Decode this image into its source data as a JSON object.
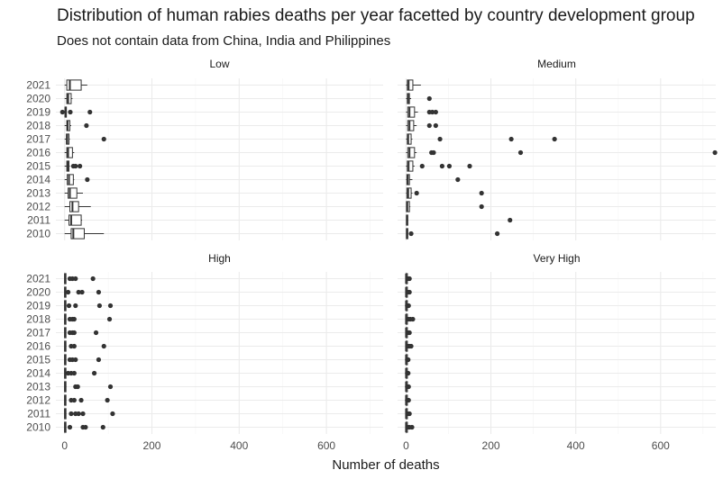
{
  "chart_data": {
    "type": "boxplot",
    "title": "Distribution of human rabies deaths per year facetted by country development group",
    "subtitle": "Does not contain data from China, India and Philippines",
    "xlabel": "Number of deaths",
    "ylabel": "",
    "xlim": [
      -20,
      730
    ],
    "x_ticks": [
      0,
      200,
      400,
      600
    ],
    "categories": [
      "2010",
      "2011",
      "2012",
      "2013",
      "2014",
      "2015",
      "2016",
      "2017",
      "2018",
      "2019",
      "2020",
      "2021"
    ],
    "grid": true,
    "facets": [
      {
        "name": "Low",
        "boxes": [
          {
            "year": "2010",
            "min": 0,
            "q1": 15,
            "median": 20,
            "q3": 45,
            "max": 90,
            "outliers": []
          },
          {
            "year": "2011",
            "min": 0,
            "q1": 10,
            "median": 15,
            "q3": 38,
            "max": 40,
            "outliers": []
          },
          {
            "year": "2012",
            "min": 0,
            "q1": 12,
            "median": 18,
            "q3": 32,
            "max": 60,
            "outliers": []
          },
          {
            "year": "2013",
            "min": 0,
            "q1": 8,
            "median": 12,
            "q3": 28,
            "max": 42,
            "outliers": []
          },
          {
            "year": "2014",
            "min": 0,
            "q1": 6,
            "median": 10,
            "q3": 20,
            "max": 22,
            "outliers": [
              52
            ]
          },
          {
            "year": "2015",
            "min": 0,
            "q1": 5,
            "median": 7,
            "q3": 10,
            "max": 12,
            "outliers": [
              20,
              25,
              35
            ]
          },
          {
            "year": "2016",
            "min": 0,
            "q1": 5,
            "median": 8,
            "q3": 18,
            "max": 22,
            "outliers": []
          },
          {
            "year": "2017",
            "min": 0,
            "q1": 4,
            "median": 6,
            "q3": 10,
            "max": 12,
            "outliers": [
              90
            ]
          },
          {
            "year": "2018",
            "min": 0,
            "q1": 5,
            "median": 7,
            "q3": 12,
            "max": 15,
            "outliers": [
              50
            ]
          },
          {
            "year": "2019",
            "min": 0,
            "q1": 1,
            "median": 2,
            "q3": 3,
            "max": 4,
            "outliers": [
              -5,
              13,
              58
            ]
          },
          {
            "year": "2020",
            "min": 0,
            "q1": 5,
            "median": 8,
            "q3": 15,
            "max": 18,
            "outliers": []
          },
          {
            "year": "2021",
            "min": 0,
            "q1": 5,
            "median": 12,
            "q3": 38,
            "max": 52,
            "outliers": []
          }
        ]
      },
      {
        "name": "Medium",
        "boxes": [
          {
            "year": "2010",
            "min": 0,
            "q1": 1,
            "median": 2,
            "q3": 4,
            "max": 5,
            "outliers": [
              12,
              215
            ]
          },
          {
            "year": "2011",
            "min": 0,
            "q1": 1,
            "median": 2,
            "q3": 4,
            "max": 5,
            "outliers": [
              245
            ]
          },
          {
            "year": "2012",
            "min": 0,
            "q1": 1,
            "median": 3,
            "q3": 8,
            "max": 10,
            "outliers": [
              178
            ]
          },
          {
            "year": "2013",
            "min": 0,
            "q1": 2,
            "median": 5,
            "q3": 12,
            "max": 15,
            "outliers": [
              25,
              178
            ]
          },
          {
            "year": "2014",
            "min": 0,
            "q1": 2,
            "median": 4,
            "q3": 8,
            "max": 15,
            "outliers": [
              122
            ]
          },
          {
            "year": "2015",
            "min": 0,
            "q1": 3,
            "median": 6,
            "q3": 16,
            "max": 20,
            "outliers": [
              38,
              85,
              102,
              150
            ]
          },
          {
            "year": "2016",
            "min": 0,
            "q1": 4,
            "median": 8,
            "q3": 20,
            "max": 25,
            "outliers": [
              60,
              65,
              270,
              728
            ]
          },
          {
            "year": "2017",
            "min": 0,
            "q1": 3,
            "median": 5,
            "q3": 12,
            "max": 15,
            "outliers": [
              80,
              248,
              350
            ]
          },
          {
            "year": "2018",
            "min": 0,
            "q1": 4,
            "median": 8,
            "q3": 18,
            "max": 25,
            "outliers": [
              55,
              70
            ]
          },
          {
            "year": "2019",
            "min": 0,
            "q1": 4,
            "median": 8,
            "q3": 20,
            "max": 28,
            "outliers": [
              55,
              62,
              70
            ]
          },
          {
            "year": "2020",
            "min": 0,
            "q1": 3,
            "median": 5,
            "q3": 8,
            "max": 12,
            "outliers": [
              55
            ]
          },
          {
            "year": "2021",
            "min": 0,
            "q1": 3,
            "median": 6,
            "q3": 16,
            "max": 35,
            "outliers": []
          }
        ]
      },
      {
        "name": "High",
        "boxes": [
          {
            "year": "2010",
            "min": 0,
            "q1": 0,
            "median": 1,
            "q3": 2,
            "max": 4,
            "outliers": [
              12,
              42,
              48,
              88
            ]
          },
          {
            "year": "2011",
            "min": 0,
            "q1": 0,
            "median": 1,
            "q3": 2,
            "max": 4,
            "outliers": [
              15,
              25,
              32,
              42,
              110
            ]
          },
          {
            "year": "2012",
            "min": 0,
            "q1": 0,
            "median": 1,
            "q3": 2,
            "max": 4,
            "outliers": [
              15,
              22,
              38,
              98
            ]
          },
          {
            "year": "2013",
            "min": 0,
            "q1": 0,
            "median": 1,
            "q3": 2,
            "max": 4,
            "outliers": [
              25,
              30,
              105
            ]
          },
          {
            "year": "2014",
            "min": 0,
            "q1": 0,
            "median": 1,
            "q3": 2,
            "max": 4,
            "outliers": [
              8,
              15,
              22,
              68
            ]
          },
          {
            "year": "2015",
            "min": 0,
            "q1": 0,
            "median": 1,
            "q3": 2,
            "max": 4,
            "outliers": [
              12,
              18,
              25,
              78
            ]
          },
          {
            "year": "2016",
            "min": 0,
            "q1": 0,
            "median": 1,
            "q3": 2,
            "max": 4,
            "outliers": [
              15,
              22,
              90
            ]
          },
          {
            "year": "2017",
            "min": 0,
            "q1": 0,
            "median": 1,
            "q3": 2,
            "max": 4,
            "outliers": [
              12,
              18,
              22,
              72
            ]
          },
          {
            "year": "2018",
            "min": 0,
            "q1": 0,
            "median": 1,
            "q3": 2,
            "max": 4,
            "outliers": [
              12,
              18,
              22,
              103
            ]
          },
          {
            "year": "2019",
            "min": 0,
            "q1": 0,
            "median": 1,
            "q3": 2,
            "max": 4,
            "outliers": [
              10,
              25,
              80,
              105
            ]
          },
          {
            "year": "2020",
            "min": 0,
            "q1": 0,
            "median": 1,
            "q3": 2,
            "max": 4,
            "outliers": [
              8,
              32,
              40,
              78
            ]
          },
          {
            "year": "2021",
            "min": 0,
            "q1": 0,
            "median": 1,
            "q3": 2,
            "max": 4,
            "outliers": [
              12,
              18,
              25,
              65
            ]
          }
        ]
      },
      {
        "name": "Very High",
        "boxes": [
          {
            "year": "2010",
            "min": 0,
            "q1": 0,
            "median": 0,
            "q3": 1,
            "max": 2,
            "outliers": [
              4,
              8,
              14
            ]
          },
          {
            "year": "2011",
            "min": 0,
            "q1": 0,
            "median": 0,
            "q3": 1,
            "max": 2,
            "outliers": [
              4,
              8
            ]
          },
          {
            "year": "2012",
            "min": 0,
            "q1": 0,
            "median": 0,
            "q3": 1,
            "max": 2,
            "outliers": [
              3,
              6
            ]
          },
          {
            "year": "2013",
            "min": 0,
            "q1": 0,
            "median": 0,
            "q3": 1,
            "max": 2,
            "outliers": [
              3,
              6
            ]
          },
          {
            "year": "2014",
            "min": 0,
            "q1": 0,
            "median": 0,
            "q3": 1,
            "max": 2,
            "outliers": [
              3,
              5
            ]
          },
          {
            "year": "2015",
            "min": 0,
            "q1": 0,
            "median": 0,
            "q3": 1,
            "max": 2,
            "outliers": [
              3,
              5
            ]
          },
          {
            "year": "2016",
            "min": 0,
            "q1": 0,
            "median": 0,
            "q3": 1,
            "max": 2,
            "outliers": [
              4,
              8,
              12
            ]
          },
          {
            "year": "2017",
            "min": 0,
            "q1": 0,
            "median": 0,
            "q3": 1,
            "max": 2,
            "outliers": [
              4,
              8
            ]
          },
          {
            "year": "2018",
            "min": 0,
            "q1": 0,
            "median": 0,
            "q3": 1,
            "max": 2,
            "outliers": [
              5,
              10,
              16
            ]
          },
          {
            "year": "2019",
            "min": 0,
            "q1": 0,
            "median": 0,
            "q3": 1,
            "max": 2,
            "outliers": [
              3,
              6
            ]
          },
          {
            "year": "2020",
            "min": 0,
            "q1": 0,
            "median": 0,
            "q3": 1,
            "max": 2,
            "outliers": [
              4,
              8
            ]
          },
          {
            "year": "2021",
            "min": 0,
            "q1": 0,
            "median": 0,
            "q3": 1,
            "max": 2,
            "outliers": [
              4,
              8
            ]
          }
        ]
      }
    ],
    "colors": {
      "box": "#333333",
      "fill": "#ffffff",
      "point": "#333333",
      "grid": "#ebebeb",
      "grid_minor": "#f5f5f5"
    }
  }
}
